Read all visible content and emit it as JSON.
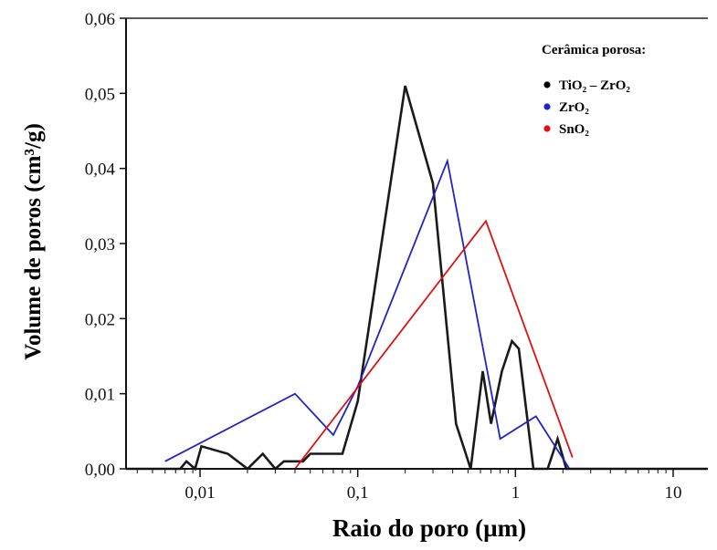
{
  "chart_data": {
    "type": "line",
    "title": "",
    "xlabel": "Raio do poro (µm)",
    "ylabel": "Volume de poros (cm³/g)",
    "xscale": "log",
    "xlim": [
      0.003,
      20
    ],
    "ylim": [
      0,
      0.06
    ],
    "x_ticks": [
      {
        "value": 0.01,
        "label": "0,01"
      },
      {
        "value": 0.1,
        "label": "0,1"
      },
      {
        "value": 1,
        "label": "1"
      },
      {
        "value": 10,
        "label": "10"
      }
    ],
    "y_ticks": [
      {
        "value": 0.0,
        "label": "0,00"
      },
      {
        "value": 0.01,
        "label": "0,01"
      },
      {
        "value": 0.02,
        "label": "0,02"
      },
      {
        "value": 0.03,
        "label": "0,03"
      },
      {
        "value": 0.04,
        "label": "0,04"
      },
      {
        "value": 0.05,
        "label": "0,05"
      },
      {
        "value": 0.06,
        "label": "0,06"
      }
    ],
    "grid": false,
    "legend": {
      "title": "Cerâmica porosa:",
      "placement": "top-right",
      "entries": [
        {
          "label": "TiO₂ – ZrO₂",
          "color": "#000000"
        },
        {
          "label": "ZrO₂",
          "color": "#1f24c8"
        },
        {
          "label": "SnO₂",
          "color": "#e01010"
        }
      ]
    },
    "series": [
      {
        "name": "TiO₂ – ZrO₂",
        "color": "#1a1a1a",
        "points": [
          [
            0.003,
            0.0
          ],
          [
            0.0075,
            0.0
          ],
          [
            0.0082,
            0.001
          ],
          [
            0.0093,
            0.0
          ],
          [
            0.0102,
            0.003
          ],
          [
            0.015,
            0.002
          ],
          [
            0.02,
            0.0
          ],
          [
            0.025,
            0.002
          ],
          [
            0.03,
            0.0
          ],
          [
            0.034,
            0.001
          ],
          [
            0.045,
            0.001
          ],
          [
            0.05,
            0.002
          ],
          [
            0.08,
            0.002
          ],
          [
            0.1,
            0.009
          ],
          [
            0.2,
            0.051
          ],
          [
            0.3,
            0.038
          ],
          [
            0.42,
            0.006
          ],
          [
            0.52,
            0.0
          ],
          [
            0.62,
            0.013
          ],
          [
            0.7,
            0.006
          ],
          [
            0.82,
            0.013
          ],
          [
            0.95,
            0.017
          ],
          [
            1.05,
            0.016
          ],
          [
            1.3,
            0.0
          ],
          [
            1.6,
            0.0
          ],
          [
            1.85,
            0.004
          ],
          [
            2.1,
            0.0
          ],
          [
            20,
            0.0
          ]
        ]
      },
      {
        "name": "ZrO₂",
        "color": "#1f24c8",
        "points": [
          [
            0.006,
            0.001
          ],
          [
            0.04,
            0.01
          ],
          [
            0.07,
            0.0045
          ],
          [
            0.1,
            0.011
          ],
          [
            0.37,
            0.041
          ],
          [
            0.8,
            0.004
          ],
          [
            1.35,
            0.007
          ],
          [
            2.2,
            0.0
          ]
        ]
      },
      {
        "name": "SnO₂",
        "color": "#e01010",
        "points": [
          [
            0.04,
            0.0
          ],
          [
            0.65,
            0.033
          ],
          [
            2.3,
            0.0015
          ]
        ]
      }
    ]
  }
}
